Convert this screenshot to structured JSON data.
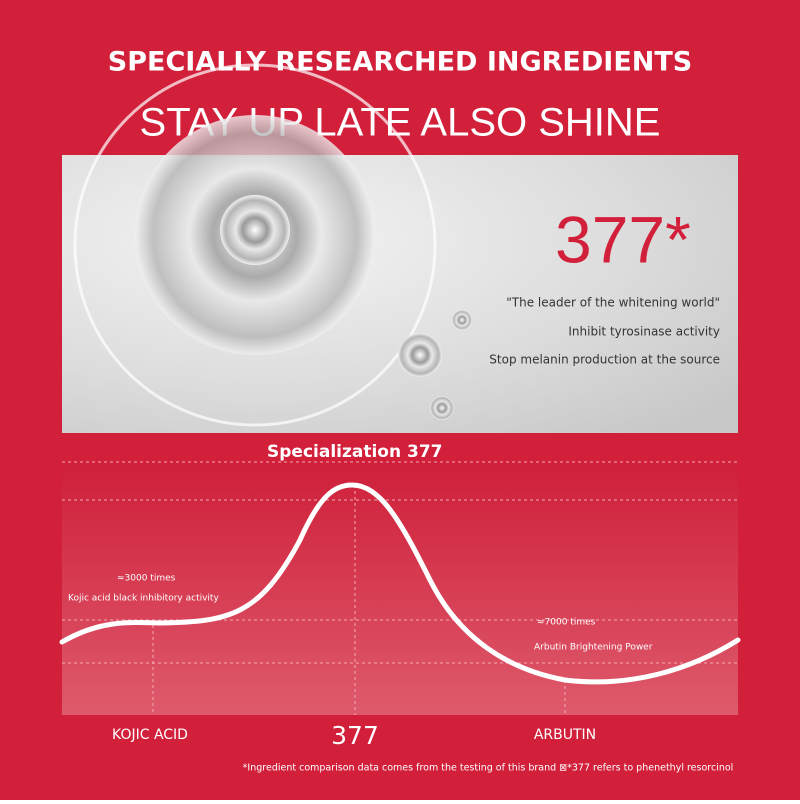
{
  "header": {
    "title": "SPECIALLY RESEARCHED INGREDIENTS",
    "subtitle": "STAY UP LATE ALSO SHINE"
  },
  "panel": {
    "headline": "377*",
    "lines": [
      "\"The leader of the whitening world\"",
      "Inhibit tyrosinase activity",
      "Stop melanin production at the source"
    ]
  },
  "comparison": {
    "title": "Specialization 377",
    "annotations": [
      {
        "multiple": "≈3000 times",
        "text": "Kojic acid black inhibitory activity"
      },
      {
        "multiple": "≈7000 times",
        "text": "Arbutin Brightening Power"
      }
    ],
    "labels": [
      "KOJIC ACID",
      "377",
      "ARBUTIN"
    ]
  },
  "footnote": "*Ingredient comparison data comes from the testing of this brand ⊠*377 refers to phenethyl resorcinol"
}
